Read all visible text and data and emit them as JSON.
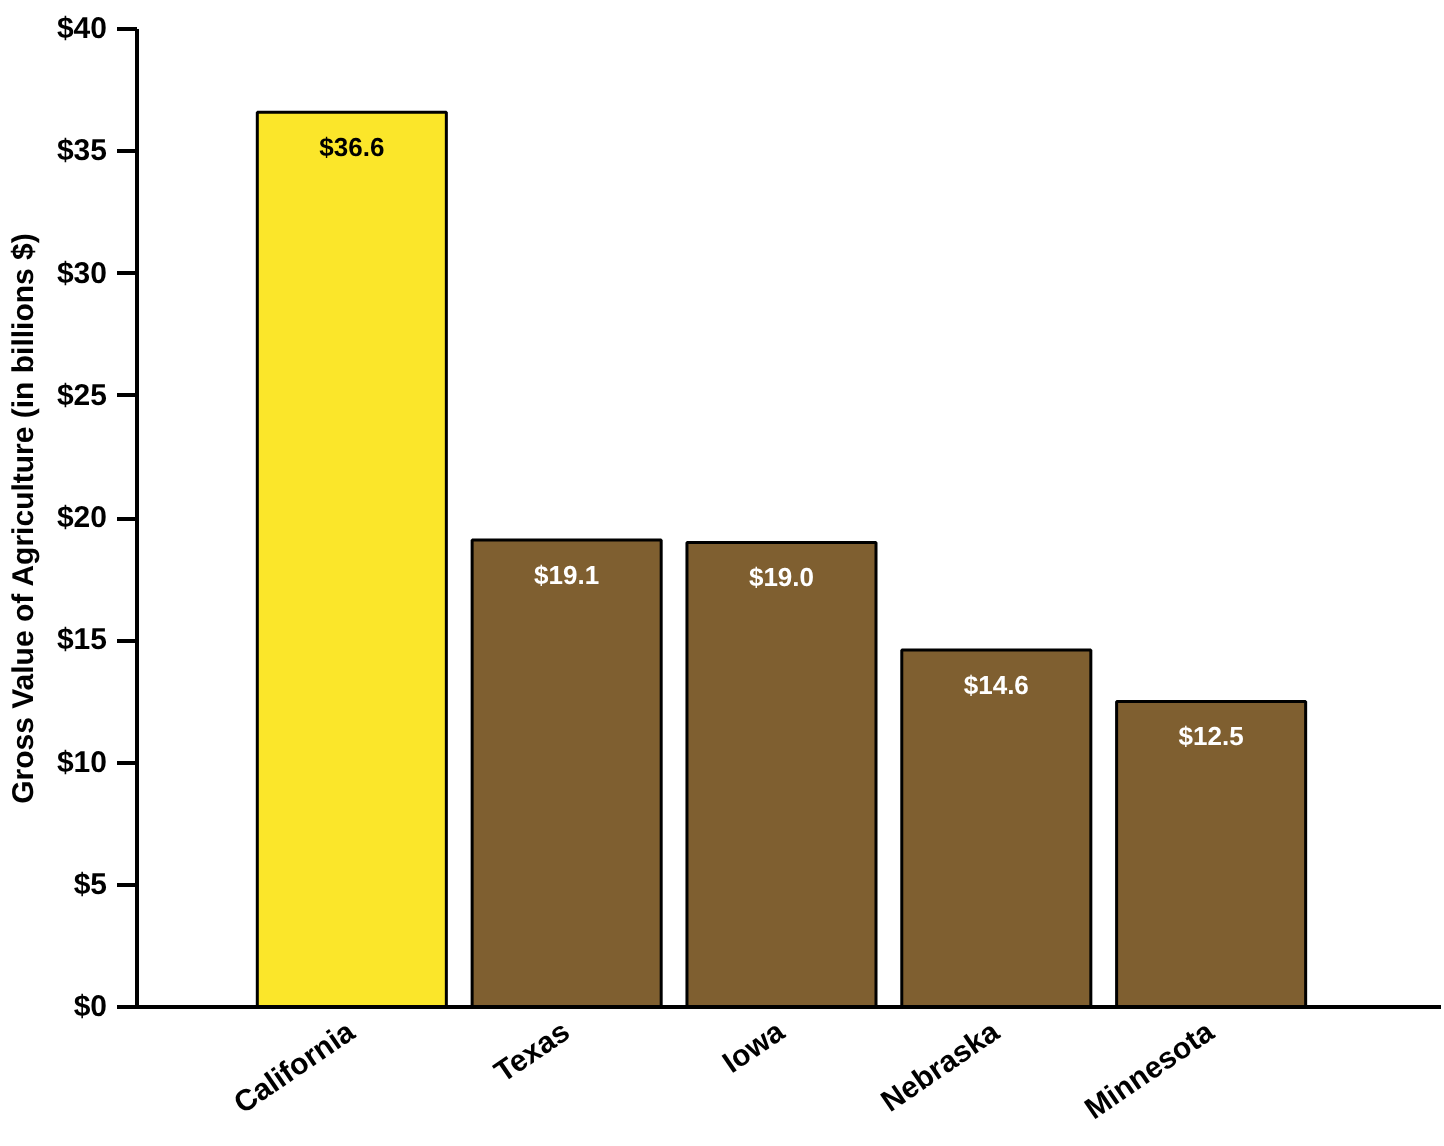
{
  "chart_data": {
    "type": "bar",
    "ylabel": "Gross Value of Agriculture (in billions $)",
    "categories": [
      "California",
      "Texas",
      "Iowa",
      "Nebraska",
      "Minnesota"
    ],
    "values": [
      36.6,
      19.1,
      19.0,
      14.6,
      12.5
    ],
    "colors": [
      "#fbe62a",
      "#7f5f30",
      "#7f5f30",
      "#7f5f30",
      "#7f5f30"
    ],
    "value_labels": [
      "$36.6",
      "$19.1",
      "$19.0",
      "$14.6",
      "$12.5"
    ],
    "ylim": [
      0,
      40
    ],
    "yticks": [
      {
        "value": 0,
        "label": "$0"
      },
      {
        "value": 5,
        "label": "$5"
      },
      {
        "value": 10,
        "label": "$10"
      },
      {
        "value": 15,
        "label": "$15"
      },
      {
        "value": 20,
        "label": "$20"
      },
      {
        "value": 25,
        "label": "$25"
      },
      {
        "value": 30,
        "label": "$30"
      },
      {
        "value": 35,
        "label": "$35"
      },
      {
        "value": 40,
        "label": "$40"
      }
    ],
    "grid": false
  }
}
